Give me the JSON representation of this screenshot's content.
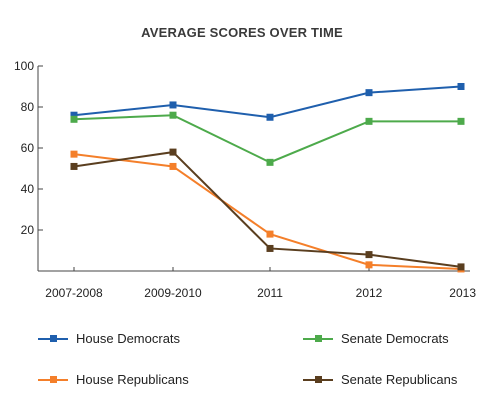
{
  "chart_data": {
    "type": "line",
    "title": "AVERAGE SCORES OVER TIME",
    "categories": [
      "2007-2008",
      "2009-2010",
      "2011",
      "2012",
      "2013"
    ],
    "yticks": [
      20,
      40,
      60,
      80,
      100
    ],
    "ylim": [
      0,
      100
    ],
    "series": [
      {
        "name": "House Democrats",
        "color": "#1f5fad",
        "values": [
          76,
          81,
          75,
          87,
          90
        ]
      },
      {
        "name": "Senate Democrats",
        "color": "#4daa4b",
        "values": [
          74,
          76,
          53,
          73,
          73
        ]
      },
      {
        "name": "House Republicans",
        "color": "#f47f2a",
        "values": [
          57,
          51,
          18,
          3,
          1
        ]
      },
      {
        "name": "Senate Republicans",
        "color": "#5a3e1f",
        "values": [
          51,
          58,
          11,
          8,
          2
        ]
      }
    ],
    "legend_position": "bottom"
  }
}
